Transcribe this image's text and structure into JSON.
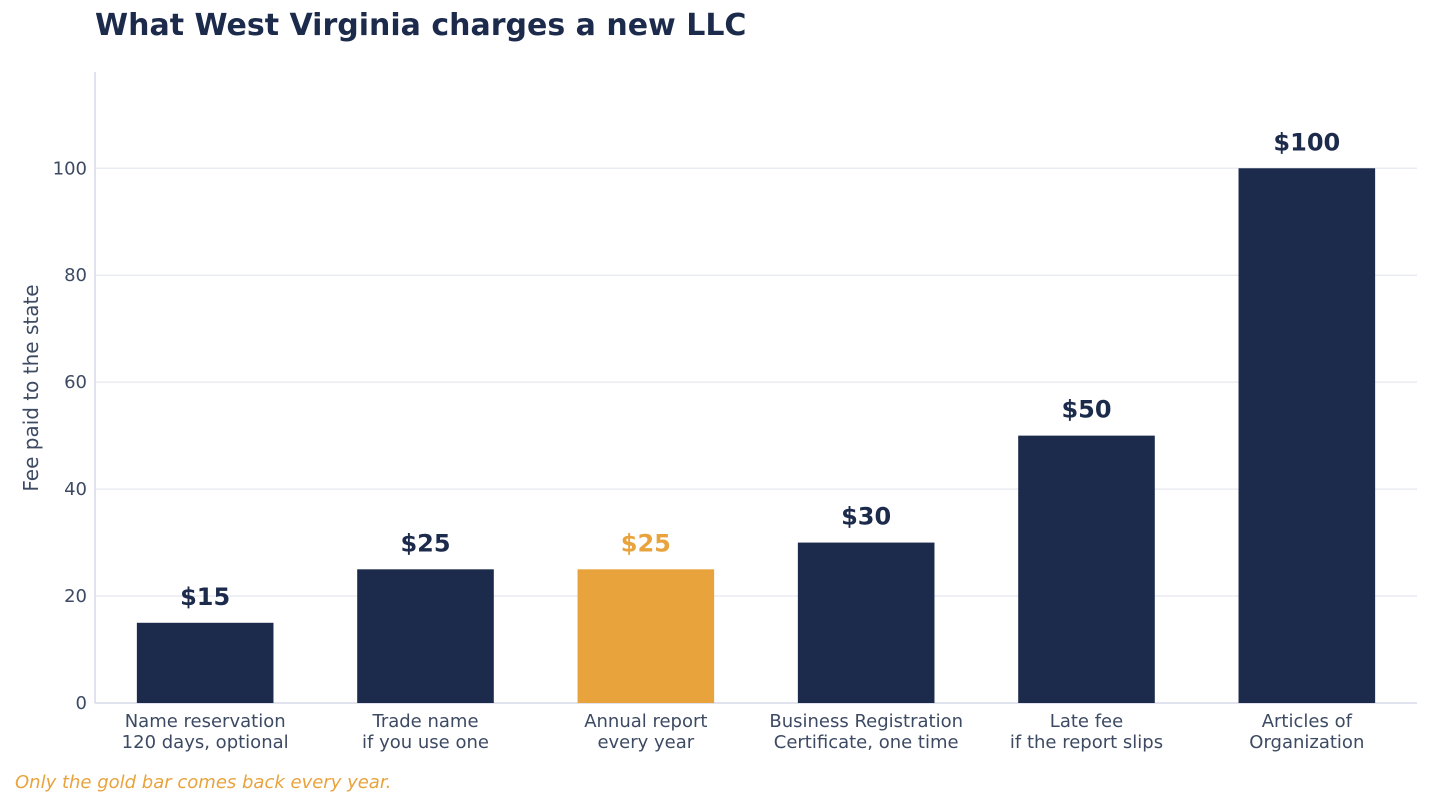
{
  "chart_data": {
    "type": "bar",
    "title": "What West Virginia charges a new LLC",
    "ylabel": "Fee paid to the state",
    "xlabel": "",
    "ylim": [
      0,
      118
    ],
    "yticks": [
      0,
      20,
      40,
      60,
      80,
      100
    ],
    "grid": true,
    "categories": [
      [
        "Name reservation",
        "120 days, optional"
      ],
      [
        "Trade name",
        "if you use one"
      ],
      [
        "Annual report",
        "every year"
      ],
      [
        "Business Registration",
        "Certificate, one time"
      ],
      [
        "Late fee",
        "if the report slips"
      ],
      [
        "Articles of",
        "Organization"
      ]
    ],
    "values": [
      15,
      25,
      25,
      30,
      50,
      100
    ],
    "data_labels": [
      "$15",
      "$25",
      "$25",
      "$30",
      "$50",
      "$100"
    ],
    "highlight_index": 2,
    "colors": {
      "bar": "#1c2b4b",
      "highlight": "#e8a33d",
      "grid": "#e9ecf2",
      "axis": "#d5d8e8"
    }
  },
  "footnote": "Only the gold bar comes back every year."
}
